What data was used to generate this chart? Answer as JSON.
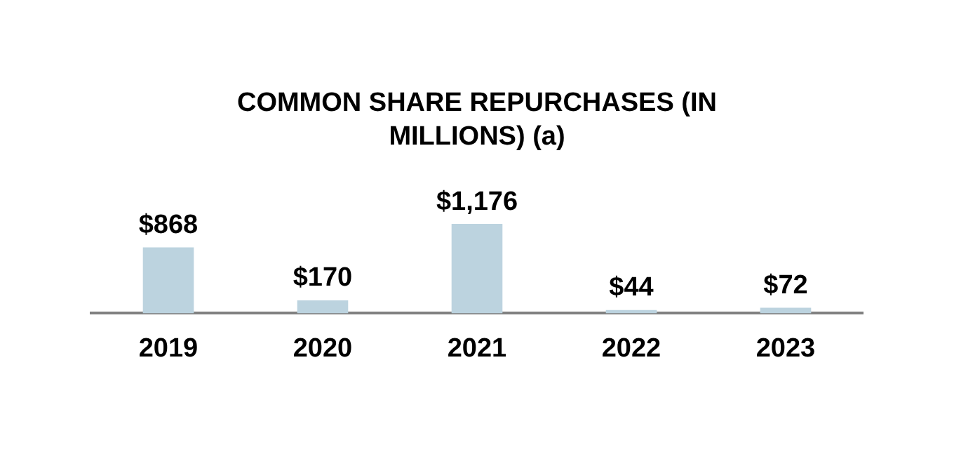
{
  "chart_data": {
    "type": "bar",
    "title": "COMMON SHARE REPURCHASES (IN MILLIONS) (a)",
    "categories": [
      "2019",
      "2020",
      "2021",
      "2022",
      "2023"
    ],
    "values": [
      868,
      170,
      1176,
      44,
      72
    ],
    "color": "#bcd3df",
    "value_labels": [
      "$868",
      "$170",
      "$1,176",
      "$44",
      "$72"
    ]
  }
}
